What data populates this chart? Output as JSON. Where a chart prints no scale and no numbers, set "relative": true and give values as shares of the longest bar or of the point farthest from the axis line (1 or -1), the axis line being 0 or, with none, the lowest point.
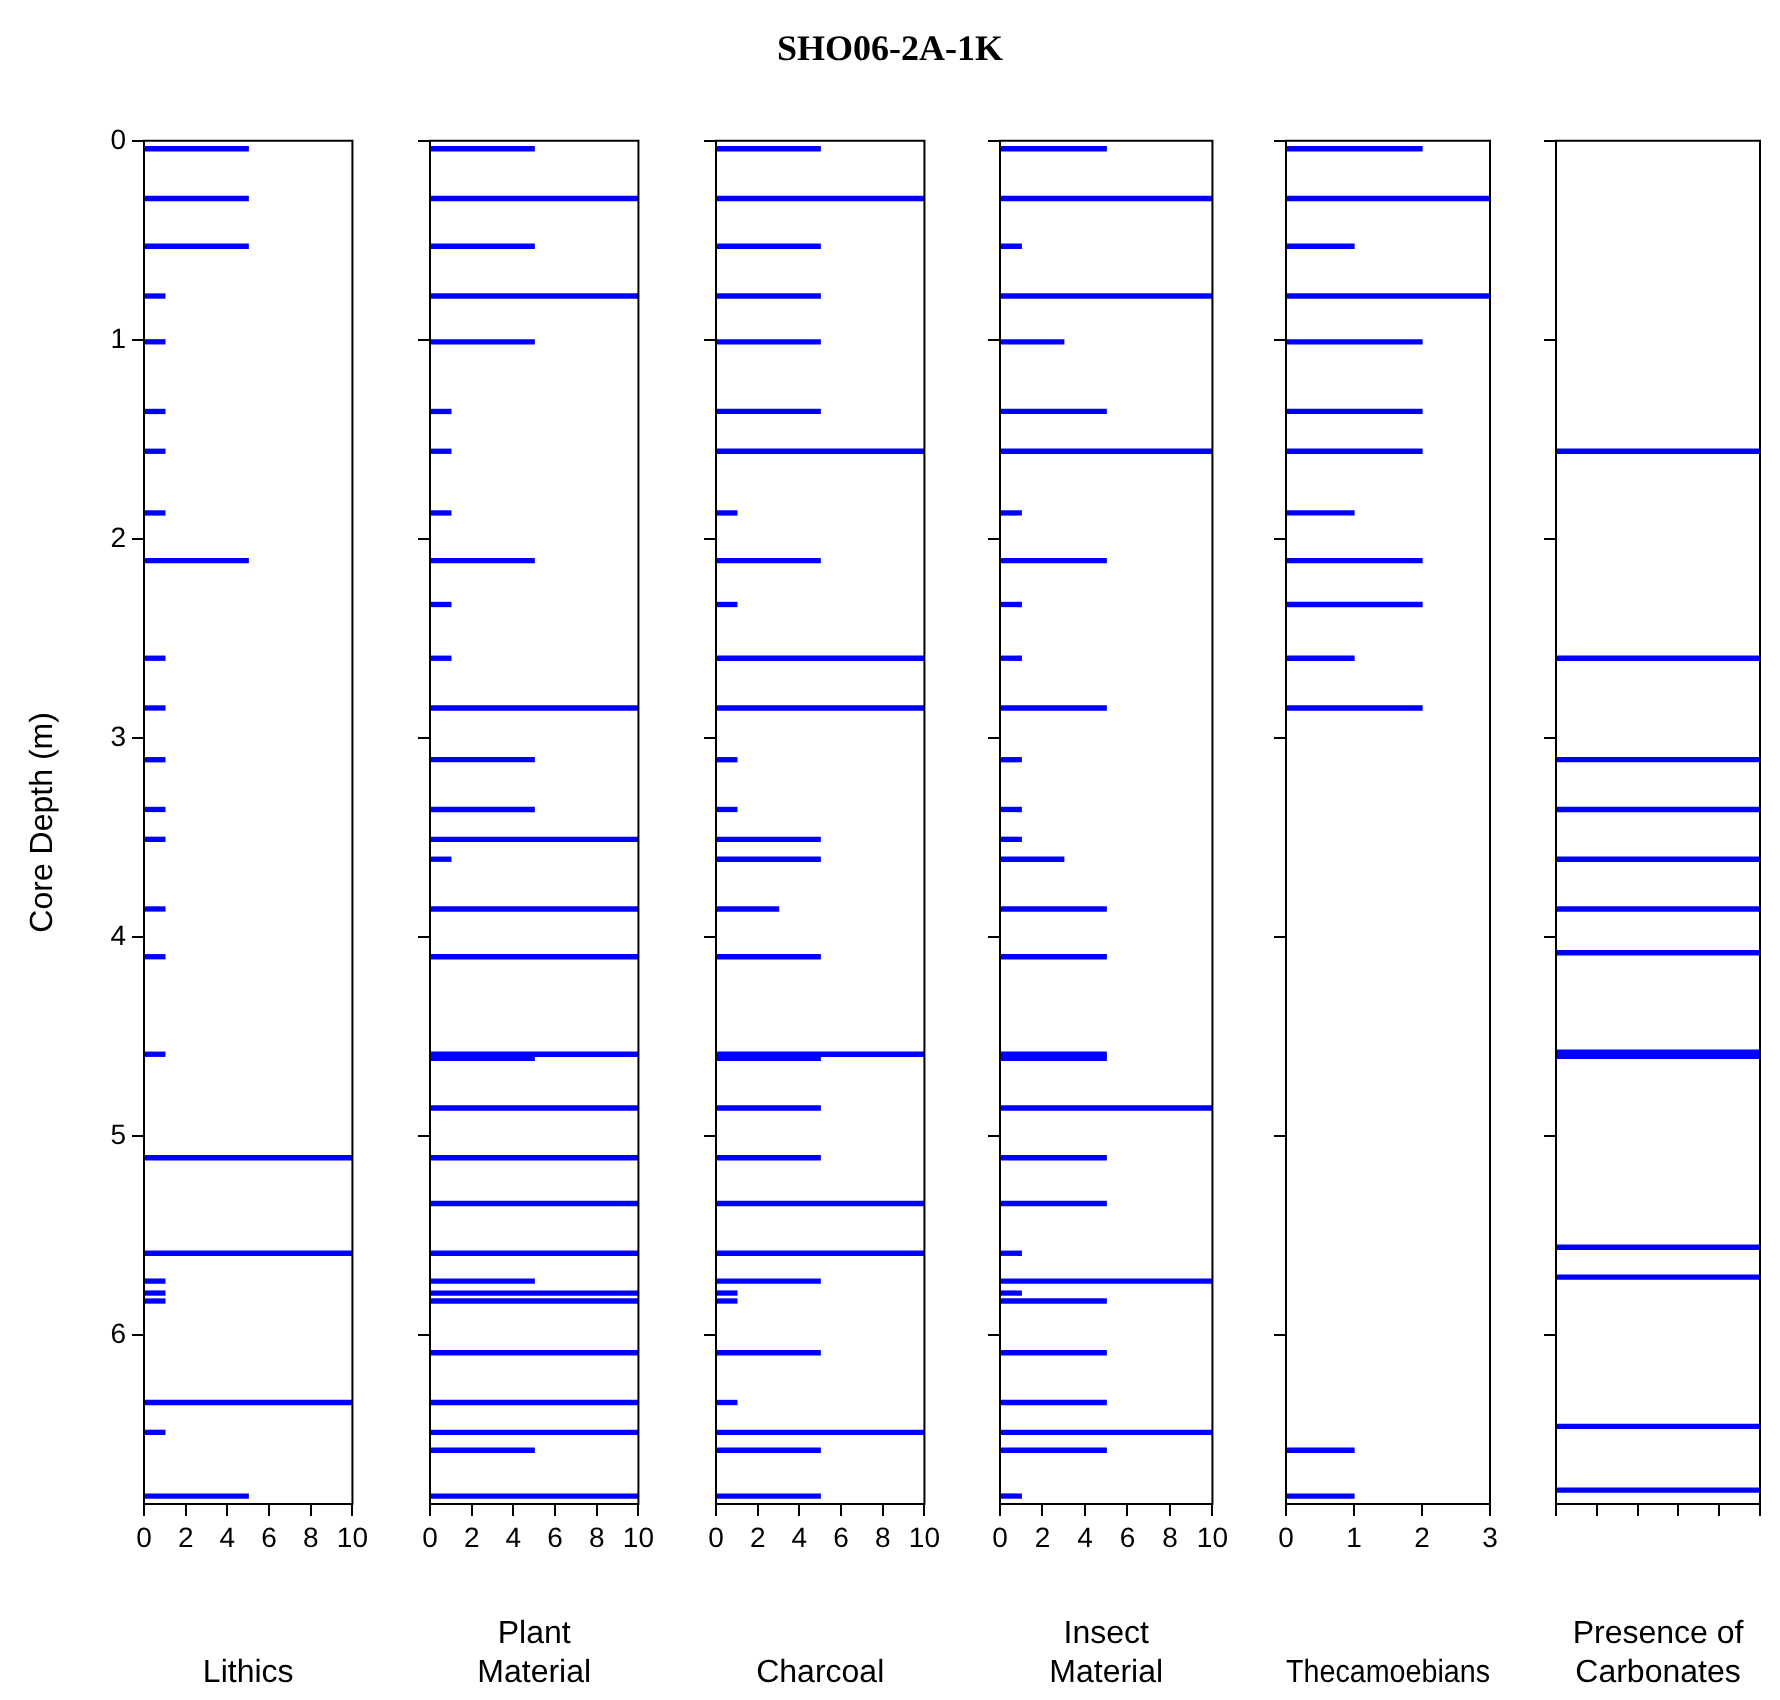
{
  "chart_data": [
    {
      "type": "bar",
      "orientation": "horizontal",
      "xlabel": "Lithics",
      "ylabel": "Core Depth (m)",
      "color": "#0000ff",
      "xlim": [
        0,
        10
      ],
      "xticks": [
        0,
        2,
        4,
        6,
        8,
        10
      ],
      "ylim": [
        6.85,
        0
      ],
      "yticks": [
        0,
        1,
        2,
        3,
        4,
        5,
        6
      ],
      "x": [
        0.04,
        0.29,
        0.53,
        0.78,
        1.01,
        1.36,
        1.56,
        1.87,
        2.11,
        2.6,
        2.85,
        3.11,
        3.36,
        3.51,
        3.86,
        4.1,
        4.59,
        5.11,
        5.59,
        5.73,
        5.79,
        5.83,
        6.34,
        6.49,
        6.81
      ],
      "values": [
        5,
        5,
        5,
        1,
        1,
        1,
        1,
        1,
        5,
        1,
        1,
        1,
        1,
        1,
        1,
        1,
        1,
        10,
        10,
        1,
        1,
        1,
        10,
        1,
        5
      ]
    },
    {
      "type": "bar",
      "orientation": "horizontal",
      "xlabel": "Plant Material",
      "color": "#0000ff",
      "xlim": [
        0,
        10
      ],
      "xticks": [
        0,
        2,
        4,
        6,
        8,
        10
      ],
      "ylim": [
        6.85,
        0
      ],
      "yticks": [
        0,
        1,
        2,
        3,
        4,
        5,
        6
      ],
      "tick_labels": "x",
      "x": [
        0.04,
        0.29,
        0.53,
        0.78,
        1.01,
        1.36,
        1.56,
        1.87,
        2.11,
        2.33,
        2.6,
        2.85,
        3.11,
        3.36,
        3.51,
        3.61,
        3.86,
        4.1,
        4.59,
        4.61,
        4.86,
        5.11,
        5.34,
        5.59,
        5.73,
        5.79,
        5.83,
        6.09,
        6.34,
        6.49,
        6.58,
        6.81
      ],
      "values": [
        5,
        10,
        5,
        10,
        5,
        1,
        1,
        1,
        5,
        1,
        1,
        10,
        5,
        5,
        10,
        1,
        10,
        10,
        10,
        5,
        10,
        10,
        10,
        10,
        5,
        10,
        10,
        10,
        10,
        10,
        5,
        10
      ]
    },
    {
      "type": "bar",
      "orientation": "horizontal",
      "title": "SHO06-2A-1K",
      "xlabel": "Charcoal",
      "color": "#0000ff",
      "xlim": [
        0,
        10
      ],
      "xticks": [
        0,
        2,
        4,
        6,
        8,
        10
      ],
      "ylim": [
        6.85,
        0
      ],
      "yticks": [
        0,
        1,
        2,
        3,
        4,
        5,
        6
      ],
      "tick_labels": "x",
      "x": [
        0.04,
        0.29,
        0.53,
        0.78,
        1.01,
        1.36,
        1.56,
        1.87,
        2.11,
        2.33,
        2.6,
        2.85,
        3.11,
        3.36,
        3.51,
        3.61,
        3.86,
        4.1,
        4.59,
        4.61,
        4.86,
        5.11,
        5.34,
        5.59,
        5.73,
        5.79,
        5.83,
        6.09,
        6.34,
        6.49,
        6.58,
        6.81
      ],
      "values": [
        5,
        10,
        5,
        5,
        5,
        5,
        10,
        1,
        5,
        1,
        10,
        10,
        1,
        1,
        5,
        5,
        3,
        5,
        10,
        5,
        5,
        5,
        10,
        10,
        5,
        1,
        1,
        5,
        1,
        10,
        5,
        5
      ]
    },
    {
      "type": "bar",
      "orientation": "horizontal",
      "xlabel": "Insect Material",
      "color": "#0000ff",
      "xlim": [
        0,
        10
      ],
      "xticks": [
        0,
        2,
        4,
        6,
        8,
        10
      ],
      "ylim": [
        6.85,
        0
      ],
      "yticks": [
        0,
        1,
        2,
        3,
        4,
        5,
        6
      ],
      "tick_labels": "x",
      "x": [
        0.04,
        0.29,
        0.53,
        0.78,
        1.01,
        1.36,
        1.56,
        1.87,
        2.11,
        2.33,
        2.6,
        2.85,
        3.11,
        3.36,
        3.51,
        3.61,
        3.86,
        4.1,
        4.59,
        4.61,
        4.86,
        5.11,
        5.34,
        5.59,
        5.73,
        5.79,
        5.83,
        6.09,
        6.34,
        6.49,
        6.58,
        6.81
      ],
      "values": [
        5,
        10,
        1,
        10,
        3,
        5,
        10,
        1,
        5,
        1,
        1,
        5,
        1,
        1,
        1,
        3,
        5,
        5,
        5,
        5,
        10,
        5,
        5,
        1,
        10,
        1,
        5,
        5,
        5,
        10,
        5,
        1
      ]
    },
    {
      "type": "bar",
      "orientation": "horizontal",
      "xlabel": "Thecamoebians",
      "color": "#0000ff",
      "xlim": [
        0,
        3
      ],
      "xticks": [
        0,
        1,
        2,
        3
      ],
      "ylim": [
        6.85,
        0
      ],
      "yticks": [
        0,
        1,
        2,
        3,
        4,
        5,
        6
      ],
      "tick_labels": "x",
      "x": [
        0.04,
        0.29,
        0.53,
        0.78,
        1.01,
        1.36,
        1.56,
        1.87,
        2.11,
        2.33,
        2.6,
        2.85,
        6.58,
        6.81
      ],
      "values": [
        2,
        3,
        1,
        3,
        2,
        2,
        2,
        1,
        2,
        2,
        1,
        2,
        1,
        1
      ]
    },
    {
      "type": "bar",
      "orientation": "horizontal",
      "relative": true,
      "xlabel": "Presence of Carbonates",
      "color": "#0000ff",
      "ylim": [
        6.85,
        0
      ],
      "yticks": [
        0,
        1,
        2,
        3,
        4,
        5,
        6
      ],
      "tick_labels": false,
      "x": [
        1.56,
        2.6,
        3.11,
        3.36,
        3.61,
        3.86,
        4.08,
        4.58,
        4.6,
        5.56,
        5.71,
        6.46,
        6.78
      ],
      "values": [
        1,
        1,
        1,
        1,
        1,
        1,
        1,
        1,
        1,
        1,
        1,
        1,
        1
      ]
    }
  ]
}
